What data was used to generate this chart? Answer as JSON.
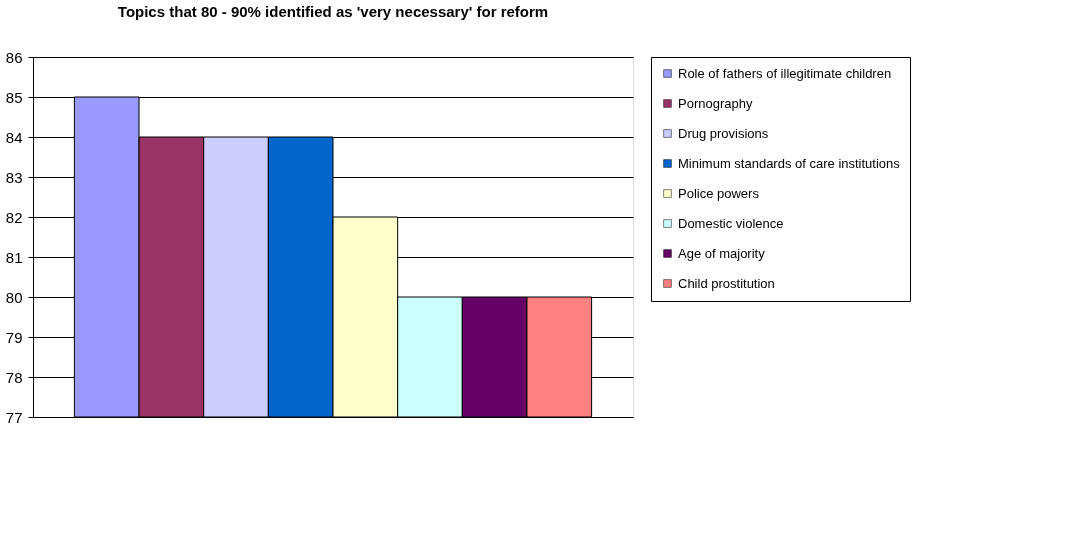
{
  "chart_data": {
    "type": "bar",
    "title": "Topics that 80 - 90% identified as 'very necessary' for reform",
    "categories": [
      null
    ],
    "series": [
      {
        "name": "Role of fathers of illegitimate children",
        "color": "#9999ff",
        "values": [
          85
        ]
      },
      {
        "name": "Pornography",
        "color": "#993366",
        "values": [
          84
        ]
      },
      {
        "name": "Drug provisions",
        "color": "#ccccff",
        "values": [
          84
        ]
      },
      {
        "name": "Minimum standards of care institutions",
        "color": "#0066cc",
        "values": [
          84
        ]
      },
      {
        "name": "Police powers",
        "color": "#ffffcc",
        "values": [
          82
        ]
      },
      {
        "name": "Domestic violence",
        "color": "#ccffff",
        "values": [
          80
        ]
      },
      {
        "name": "Age of majority",
        "color": "#660066",
        "values": [
          80
        ]
      },
      {
        "name": "Child prostitution",
        "color": "#ff8080",
        "values": [
          80
        ]
      }
    ],
    "ylim": [
      77,
      86
    ],
    "yticks": [
      77,
      78,
      79,
      80,
      81,
      82,
      83,
      84,
      85,
      86
    ],
    "grid": "y",
    "legend": "right",
    "tick_labels": "y"
  }
}
